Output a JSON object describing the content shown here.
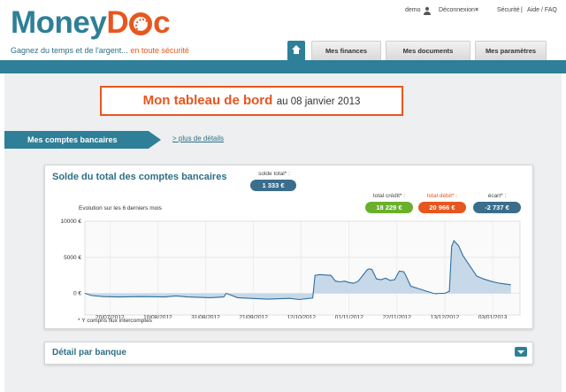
{
  "logo": {
    "part1": "Money",
    "part2": "D",
    "part3": "c"
  },
  "tagline": {
    "main": "Gagnez du temps et de l'argent...",
    "accent": " en toute sécurité"
  },
  "toplinks": {
    "user": "demo",
    "logout": "Déconnexion",
    "logout_icon": "×",
    "security": "Sécurité",
    "separator": "|",
    "help": "Aide / FAQ"
  },
  "nav": {
    "home_icon": "home-icon",
    "tabs": [
      "Mes finances",
      "Mes documents",
      "Mes paramètres"
    ]
  },
  "header": {
    "title": "Mon tableau de bord",
    "subtitle": "au 08 janvier 2013"
  },
  "section": {
    "tab_label": "Mes comptes bancaires",
    "more_link": "> plus de détails"
  },
  "card": {
    "title": "Solde du total des comptes bancaires",
    "total_label": "solde total* :",
    "total_value": "1 333 €",
    "credit_label": "total crédit* :",
    "credit_value": "18 229 €",
    "debit_label": "total débit* :",
    "debit_value": "20 966 €",
    "ecart_label": "écart* :",
    "ecart_value": "-2 737 €",
    "evolution_label": "Evolution sur les 6 derniers mois",
    "footnote": "* Y compris flux intercomptes"
  },
  "chart_data": {
    "type": "area",
    "title": "",
    "xlabel": "",
    "ylabel": "",
    "ylim": [
      -3000,
      10000
    ],
    "yticks": [
      "10000 €",
      "5000 €",
      "0 €"
    ],
    "y_tick_values": [
      10000,
      5000,
      0
    ],
    "xticks": [
      "20/07/2012",
      "10/08/2012",
      "31/08/2012",
      "21/09/2012",
      "12/10/2012",
      "01/11/2012",
      "22/11/2012",
      "13/12/2012",
      "03/01/2013"
    ],
    "x_tick_days": [
      11,
      32,
      53,
      74,
      95,
      116,
      137,
      158,
      179
    ],
    "x_range_days": [
      0,
      191
    ],
    "grid": true,
    "color": "#2e6f9e",
    "x": [
      0,
      3,
      8,
      15,
      25,
      35,
      40,
      45,
      55,
      61,
      62,
      67,
      70,
      80,
      90,
      94,
      100,
      101,
      103,
      108,
      110,
      112,
      114,
      116,
      118,
      120,
      124,
      125,
      126,
      128,
      130,
      132,
      134,
      136,
      138,
      140,
      141,
      143,
      147,
      150,
      153,
      154,
      156,
      158,
      160,
      161,
      162,
      164,
      166,
      169,
      172,
      175,
      178,
      182,
      187
    ],
    "y": [
      0,
      -300,
      -450,
      -500,
      -450,
      -500,
      -350,
      -500,
      -600,
      -500,
      0,
      -600,
      -650,
      -800,
      -700,
      -850,
      -650,
      2500,
      2600,
      2500,
      1700,
      1600,
      1700,
      1500,
      1400,
      1700,
      3300,
      3400,
      3300,
      2000,
      1900,
      2100,
      1800,
      1900,
      3100,
      3000,
      2400,
      1000,
      600,
      300,
      0,
      -50,
      0,
      0,
      300,
      6500,
      7300,
      6600,
      5200,
      3800,
      2400,
      2000,
      1700,
      1400,
      1200
    ]
  },
  "detail": {
    "title": "Détail par banque",
    "expand_icon": "chevron-down-icon"
  }
}
